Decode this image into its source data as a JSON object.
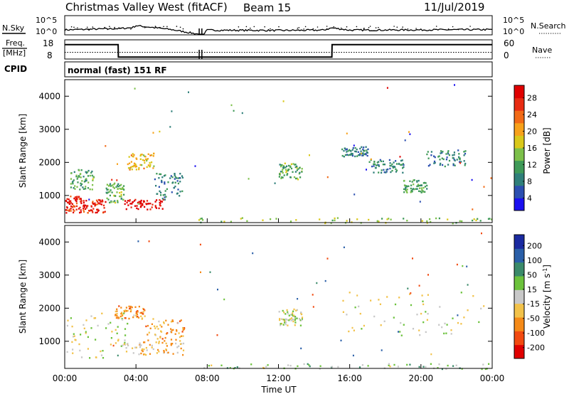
{
  "header": {
    "title": "Christmas Valley West (fitACF)",
    "beam": "Beam 15",
    "date": "11/Jul/2019"
  },
  "panels": {
    "nsky": {
      "left_label": "N.Sky",
      "left_ticks": [
        "10^5",
        "10^0"
      ],
      "right_ticks": [
        "10^5",
        "10^0"
      ],
      "right_label": "N.Search"
    },
    "freq": {
      "left_label_1": "Freq.",
      "left_label_2": "[MHz]",
      "left_ticks": [
        "18",
        "8"
      ],
      "right_ticks": [
        "60",
        "0"
      ],
      "right_label": "Nave"
    },
    "cpid": {
      "label": "CPID",
      "value": "normal (fast) 151 RF"
    },
    "power": {
      "ylabel": "Slant Range [km]",
      "yticks": [
        "4000",
        "3000",
        "2000",
        "1000"
      ],
      "colorbar_label": "Power [dB]",
      "colorbar_ticks": [
        "28",
        "24",
        "20",
        "16",
        "12",
        "8",
        "4"
      ]
    },
    "velocity": {
      "ylabel": "Slant Range [km]",
      "yticks": [
        "4000",
        "3000",
        "2000",
        "1000"
      ],
      "colorbar_label": "Velocity [m s",
      "colorbar_label_sup": "-1",
      "colorbar_label_end": "]",
      "colorbar_ticks": [
        "200",
        "100",
        "50",
        "15",
        "-15",
        "-50",
        "-100",
        "-200"
      ]
    },
    "xaxis": {
      "ticks": [
        "00:00",
        "04:00",
        "08:00",
        "12:00",
        "16:00",
        "20:00",
        "00:00"
      ],
      "label": "Time UT"
    }
  },
  "colors": {
    "power_scale": [
      "#1a10f0",
      "#2c4fb0",
      "#2f7f7a",
      "#3f9a58",
      "#7cc04a",
      "#d9c81a",
      "#f7a11a",
      "#f26a16",
      "#e82b12",
      "#e00000"
    ],
    "velocity_scale": [
      "#e00000",
      "#f24a10",
      "#f58a18",
      "#f2c24a",
      "#c8c8c8",
      "#6cc23c",
      "#3a8a6a",
      "#2a5fa8",
      "#1a2aa0"
    ]
  },
  "chart_data": [
    {
      "type": "line",
      "title": "N.Sky / N.Search",
      "x_unit": "hours UT",
      "x": [
        0,
        2,
        3.2,
        3.8,
        4,
        6,
        7.5,
        7.8,
        8,
        12,
        14.5,
        15,
        16,
        20,
        24
      ],
      "series": [
        {
          "name": "N.Sky",
          "values": [
            1.5,
            1.8,
            2.0,
            2.3,
            3.0,
            1.6,
            0,
            0,
            1.4,
            1.3,
            1.4,
            2.2,
            1.4,
            1.5,
            1.6
          ]
        }
      ],
      "ylim": [
        0,
        5
      ],
      "y_scale": "log"
    },
    {
      "type": "line",
      "title": "Freq. / Nave",
      "x": [
        0,
        3.0,
        3.01,
        7.5,
        7.8,
        15.0,
        15.01,
        24
      ],
      "series": [
        {
          "name": "Freq.",
          "values": [
            15.5,
            15.5,
            9.0,
            9.0,
            9.0,
            9.0,
            15.5,
            15.5
          ]
        },
        {
          "name": "Nave",
          "values": [
            21,
            21,
            21,
            21,
            21,
            21,
            21,
            21
          ]
        }
      ],
      "ylim": [
        8,
        18
      ],
      "ylim_right": [
        0,
        60
      ]
    },
    {
      "type": "heatmap",
      "title": "Power",
      "xlim": [
        0,
        24
      ],
      "ylim": [
        180,
        4500
      ],
      "clim": [
        0,
        30
      ],
      "regions": [
        {
          "x0": 0.0,
          "x1": 1.0,
          "y0": 500,
          "y1": 1000,
          "value": 26
        },
        {
          "x0": 0.3,
          "x1": 1.6,
          "y0": 1200,
          "y1": 1800,
          "value": 11
        },
        {
          "x0": 1.0,
          "x1": 2.3,
          "y0": 500,
          "y1": 900,
          "value": 27
        },
        {
          "x0": 2.3,
          "x1": 3.3,
          "y0": 800,
          "y1": 1400,
          "value": 12
        },
        {
          "x0": 3.3,
          "x1": 5.5,
          "y0": 600,
          "y1": 900,
          "value": 29
        },
        {
          "x0": 3.5,
          "x1": 5.0,
          "y0": 1800,
          "y1": 2300,
          "value": 18
        },
        {
          "x0": 5.0,
          "x1": 6.6,
          "y0": 900,
          "y1": 1700,
          "value": 8
        },
        {
          "x0": 7.5,
          "x1": 24.0,
          "y0": 180,
          "y1": 350,
          "value": 14
        },
        {
          "x0": 12.0,
          "x1": 13.3,
          "y0": 1500,
          "y1": 2000,
          "value": 12
        },
        {
          "x0": 15.5,
          "x1": 17.0,
          "y0": 2200,
          "y1": 2500,
          "value": 8
        },
        {
          "x0": 17.0,
          "x1": 19.0,
          "y0": 1700,
          "y1": 2100,
          "value": 8
        },
        {
          "x0": 19.0,
          "x1": 20.3,
          "y0": 1100,
          "y1": 1500,
          "value": 11
        },
        {
          "x0": 20.3,
          "x1": 22.5,
          "y0": 1900,
          "y1": 2400,
          "value": 8
        }
      ]
    },
    {
      "type": "heatmap",
      "title": "Velocity",
      "xlim": [
        0,
        24
      ],
      "ylim": [
        180,
        4500
      ],
      "clim": [
        -200,
        200
      ],
      "regions": [
        {
          "x0": 0.0,
          "x1": 3.5,
          "y0": 500,
          "y1": 1900,
          "value": 0
        },
        {
          "x0": 2.8,
          "x1": 4.5,
          "y0": 1700,
          "y1": 2100,
          "value": -60
        },
        {
          "x0": 3.3,
          "x1": 6.7,
          "y0": 600,
          "y1": 1000,
          "value": -40
        },
        {
          "x0": 4.5,
          "x1": 6.7,
          "y0": 1000,
          "y1": 1700,
          "value": -60
        },
        {
          "x0": 7.5,
          "x1": 24.0,
          "y0": 180,
          "y1": 350,
          "value": 25
        },
        {
          "x0": 12.0,
          "x1": 13.3,
          "y0": 1500,
          "y1": 2000,
          "value": 0
        },
        {
          "x0": 15.5,
          "x1": 23.5,
          "y0": 1200,
          "y1": 2500,
          "value": 0
        }
      ]
    }
  ]
}
